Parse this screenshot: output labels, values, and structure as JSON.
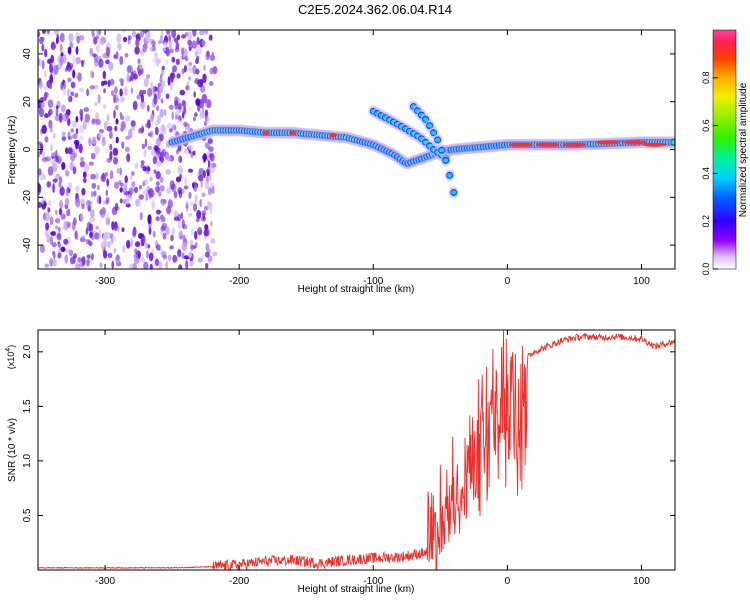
{
  "title": "C2E5.2024.362.06.04.R14",
  "colors": {
    "snr_line": "#e8302c",
    "spectro_dark": "#5a00d0",
    "spectro_light": "#c8b0f0",
    "axis": "#000000"
  },
  "chart_data": [
    {
      "type": "heatmap",
      "title": "C2E5.2024.362.06.04.R14",
      "xlabel": "Height of straight line (km)",
      "ylabel": "Frequency (Hz)",
      "xlim": [
        -350,
        125
      ],
      "ylim": [
        -50,
        50
      ],
      "xticks": [
        -300,
        -200,
        -100,
        0,
        100
      ],
      "xtick_labels": [
        "-300",
        "-200",
        "-100",
        "0",
        "100"
      ],
      "yticks": [
        -40,
        -20,
        0,
        20,
        40
      ],
      "ytick_labels": [
        "-40",
        "-20",
        "0",
        "20",
        "40"
      ],
      "colorbar": {
        "label": "Normalized spectral amplitude",
        "range": [
          0,
          1
        ],
        "ticks": [
          0.0,
          0.2,
          0.4,
          0.6,
          0.8
        ],
        "tick_labels": [
          "0.0",
          "0.2",
          "0.4",
          "0.6",
          "0.8"
        ]
      },
      "noise_region_x": [
        -350,
        -218
      ],
      "main_trace": [
        [
          -250,
          3
        ],
        [
          -220,
          8
        ],
        [
          -200,
          8
        ],
        [
          -180,
          7
        ],
        [
          -160,
          7
        ],
        [
          -140,
          6
        ],
        [
          -120,
          5
        ],
        [
          -100,
          2
        ],
        [
          -85,
          -2
        ],
        [
          -75,
          -6
        ],
        [
          -60,
          -3
        ],
        [
          -50,
          -1
        ],
        [
          -40,
          0
        ],
        [
          -20,
          1
        ],
        [
          0,
          2
        ],
        [
          50,
          2
        ],
        [
          100,
          3
        ],
        [
          125,
          3
        ]
      ],
      "branches": [
        {
          "name": "upper-branch-1",
          "points": [
            [
              -100,
              16
            ],
            [
              -80,
              10
            ],
            [
              -65,
              5
            ],
            [
              -55,
              0
            ],
            [
              -45,
              -4
            ]
          ]
        },
        {
          "name": "upper-branch-2",
          "points": [
            [
              -70,
              18
            ],
            [
              -60,
              12
            ],
            [
              -52,
              4
            ],
            [
              -45,
              -6
            ],
            [
              -40,
              -18
            ]
          ]
        }
      ]
    },
    {
      "type": "line",
      "xlabel": "Height of straight line (km)",
      "ylabel": "SNR (10 * v/v)",
      "y_multiplier": "(x10",
      "y_multiplier_exp": "4",
      "xlim": [
        -350,
        125
      ],
      "ylim": [
        0,
        2.2
      ],
      "xticks": [
        -300,
        -200,
        -100,
        0,
        100
      ],
      "xtick_labels": [
        "-300",
        "-200",
        "-100",
        "0",
        "100"
      ],
      "yticks": [
        0.5,
        1.0,
        1.5,
        2.0
      ],
      "ytick_labels": [
        "0.5",
        "1.0",
        "1.5",
        "2.0"
      ],
      "series": [
        {
          "name": "SNR",
          "x": [
            -350,
            -300,
            -250,
            -220,
            -200,
            -180,
            -160,
            -140,
            -120,
            -100,
            -80,
            -70,
            -60,
            -55,
            -50,
            -45,
            -40,
            -35,
            -30,
            -25,
            -20,
            -15,
            -10,
            -5,
            0,
            5,
            10,
            15,
            20,
            30,
            40,
            50,
            60,
            70,
            80,
            90,
            100,
            110,
            120,
            125
          ],
          "y": [
            0.02,
            0.02,
            0.02,
            0.03,
            0.05,
            0.08,
            0.09,
            0.06,
            0.09,
            0.11,
            0.12,
            0.14,
            0.16,
            0.3,
            0.45,
            0.6,
            0.75,
            0.9,
            1.0,
            1.15,
            1.3,
            1.45,
            1.5,
            1.65,
            1.75,
            1.8,
            1.9,
            1.95,
            2.0,
            2.05,
            2.1,
            2.13,
            2.14,
            2.13,
            2.14,
            2.13,
            2.12,
            2.05,
            2.08,
            2.1
          ]
        }
      ]
    }
  ]
}
